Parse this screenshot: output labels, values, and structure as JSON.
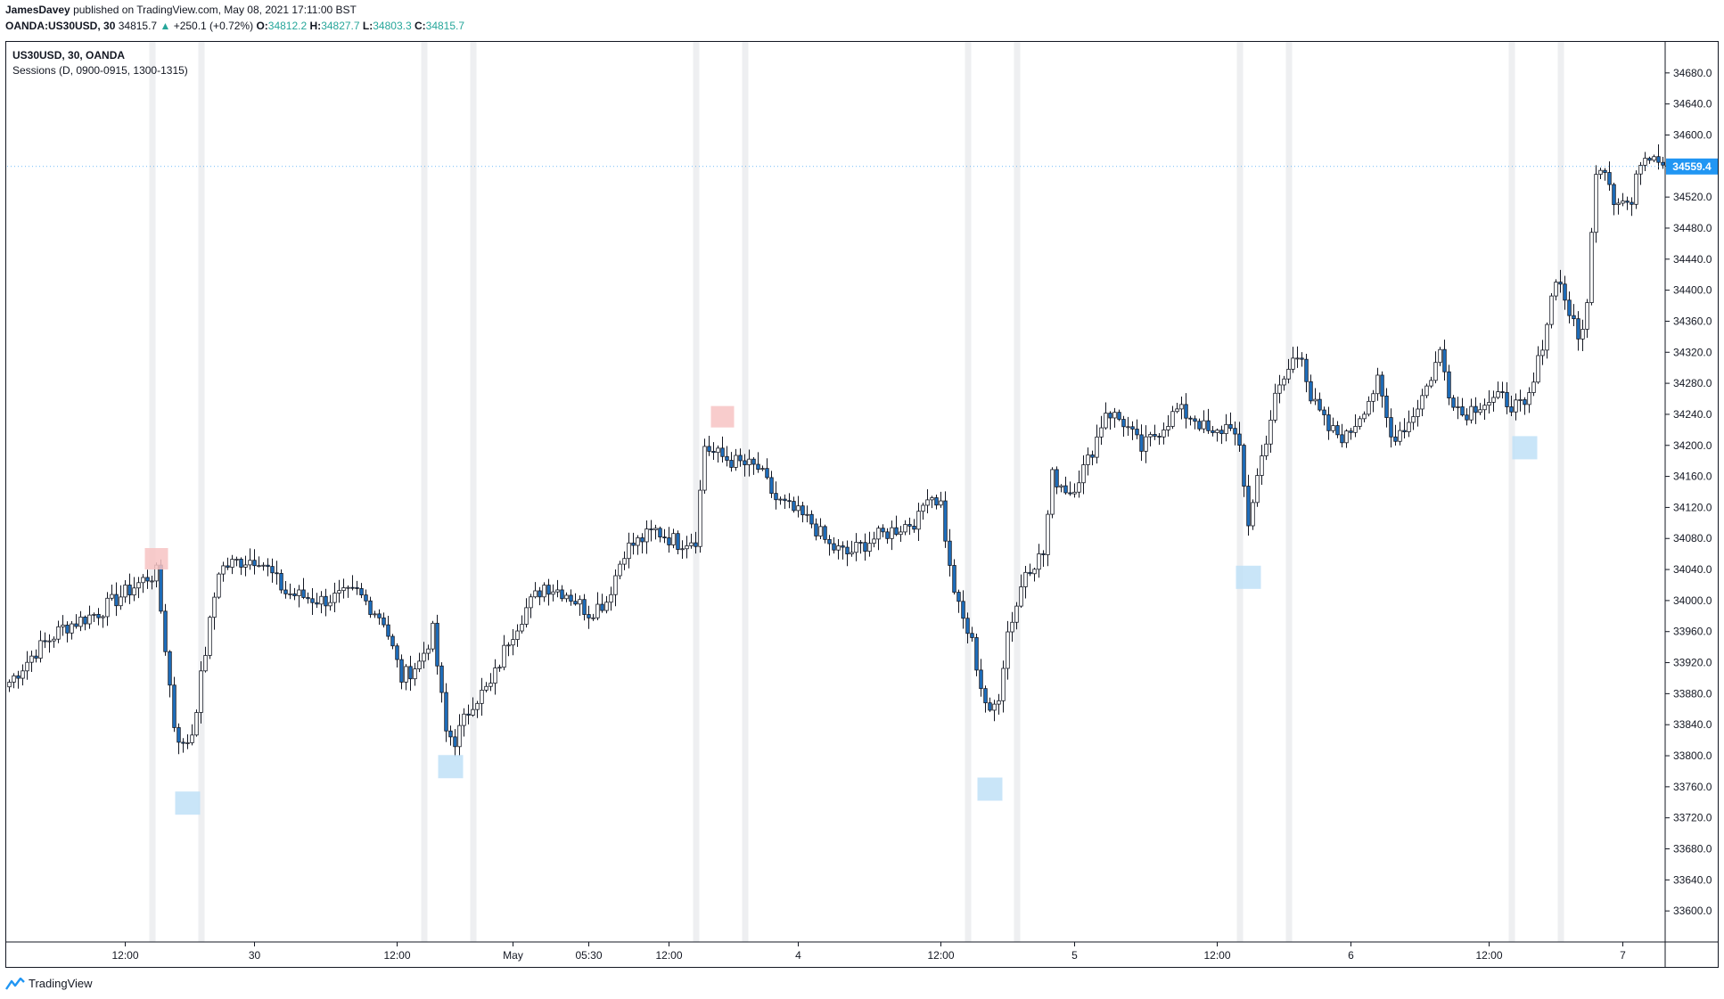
{
  "publish_line": {
    "author": "JamesDavey",
    "text": "published on TradingView.com, May 08, 2021 17:11:00 BST"
  },
  "quote": {
    "symbol": "OANDA:US30USD, 30",
    "last": "34815.7",
    "arrow": "▲",
    "change": "+250.1 (+0.72%)",
    "o_label": "O:",
    "o": "34812.2",
    "h_label": "H:",
    "h": "34827.7",
    "l_label": "L:",
    "l": "34803.3",
    "c_label": "C:",
    "c": "34815.7"
  },
  "legend": {
    "title": "US30USD, 30, OANDA",
    "indicator": "Sessions (D, 0900-0915, 1300-1315)"
  },
  "price_tag": "34559.4",
  "footer": {
    "brand": "TradingView"
  },
  "colors": {
    "up_body": "#ffffff",
    "down_body": "#1e6fbf",
    "wick": "#131722",
    "session_band": "#eeeff1",
    "high_marker": "#f7c3c3",
    "low_marker": "#bfe0f7",
    "tag": "#2196f3"
  },
  "chart_data": {
    "type": "candlestick",
    "title": "US30USD, 30, OANDA",
    "ylim": [
      33560,
      34720
    ],
    "y_ticks": [
      33600,
      33640,
      33680,
      33720,
      33760,
      33800,
      33840,
      33880,
      33920,
      33960,
      34000,
      34040,
      34080,
      34120,
      34160,
      34200,
      34240,
      34280,
      34320,
      34360,
      34400,
      34440,
      34480,
      34520,
      34560,
      34600,
      34640,
      34680
    ],
    "y_tick_labels": [
      "33600.0",
      "33640.0",
      "33680.0",
      "33720.0",
      "33760.0",
      "33800.0",
      "33840.0",
      "33880.0",
      "33920.0",
      "33960.0",
      "34000.0",
      "34040.0",
      "34080.0",
      "34120.0",
      "34160.0",
      "34200.0",
      "34240.0",
      "34280.0",
      "34320.0",
      "34360.0",
      "34400.0",
      "34440.0",
      "34480.0",
      "34520.0",
      "34560.0",
      "34600.0",
      "34640.0",
      "34680.0"
    ],
    "x_ticks": [
      {
        "bar": 26,
        "label": "12:00"
      },
      {
        "bar": 55,
        "label": "30"
      },
      {
        "bar": 87,
        "label": "12:00"
      },
      {
        "bar": 113,
        "label": "May"
      },
      {
        "bar": 130,
        "label": "05:30"
      },
      {
        "bar": 148,
        "label": "12:00"
      },
      {
        "bar": 177,
        "label": "4"
      },
      {
        "bar": 209,
        "label": "12:00"
      },
      {
        "bar": 239,
        "label": "5"
      },
      {
        "bar": 271,
        "label": "12:00"
      },
      {
        "bar": 301,
        "label": "6"
      },
      {
        "bar": 332,
        "label": "12:00"
      },
      {
        "bar": 362,
        "label": "7"
      }
    ],
    "session_bands": [
      32,
      43,
      93,
      104,
      154,
      165,
      215,
      226,
      276,
      287,
      337,
      348
    ],
    "daily_high_markers": [
      {
        "bar": 33,
        "price": 34047
      },
      {
        "bar": 160,
        "price": 34230
      }
    ],
    "daily_low_markers": [
      {
        "bar": 40,
        "price": 33747
      },
      {
        "bar": 99,
        "price": 33794
      },
      {
        "bar": 220,
        "price": 33765
      },
      {
        "bar": 278,
        "price": 34038
      },
      {
        "bar": 340,
        "price": 34205
      }
    ],
    "last_price": 34559.4,
    "anchors": [
      [
        0,
        33895
      ],
      [
        6,
        33935
      ],
      [
        12,
        33965
      ],
      [
        20,
        33985
      ],
      [
        26,
        34010
      ],
      [
        31,
        34030
      ],
      [
        33,
        34035
      ],
      [
        35,
        33940
      ],
      [
        37,
        33840
      ],
      [
        39,
        33810
      ],
      [
        41,
        33830
      ],
      [
        44,
        33935
      ],
      [
        47,
        34040
      ],
      [
        51,
        34050
      ],
      [
        56,
        34055
      ],
      [
        62,
        34010
      ],
      [
        70,
        34000
      ],
      [
        78,
        34010
      ],
      [
        84,
        33975
      ],
      [
        88,
        33900
      ],
      [
        92,
        33920
      ],
      [
        95,
        33960
      ],
      [
        98,
        33830
      ],
      [
        100,
        33820
      ],
      [
        104,
        33870
      ],
      [
        108,
        33890
      ],
      [
        112,
        33950
      ],
      [
        116,
        33990
      ],
      [
        120,
        34020
      ],
      [
        125,
        34010
      ],
      [
        130,
        33985
      ],
      [
        134,
        34000
      ],
      [
        138,
        34065
      ],
      [
        145,
        34090
      ],
      [
        150,
        34075
      ],
      [
        154,
        34080
      ],
      [
        156,
        34200
      ],
      [
        158,
        34190
      ],
      [
        162,
        34180
      ],
      [
        168,
        34170
      ],
      [
        172,
        34130
      ],
      [
        176,
        34115
      ],
      [
        180,
        34100
      ],
      [
        184,
        34070
      ],
      [
        188,
        34060
      ],
      [
        194,
        34080
      ],
      [
        200,
        34095
      ],
      [
        204,
        34105
      ],
      [
        206,
        34140
      ],
      [
        209,
        34125
      ],
      [
        211,
        34040
      ],
      [
        213,
        33990
      ],
      [
        216,
        33945
      ],
      [
        218,
        33890
      ],
      [
        220,
        33850
      ],
      [
        222,
        33880
      ],
      [
        224,
        33960
      ],
      [
        226,
        33995
      ],
      [
        228,
        34040
      ],
      [
        232,
        34060
      ],
      [
        234,
        34160
      ],
      [
        238,
        34140
      ],
      [
        242,
        34180
      ],
      [
        244,
        34210
      ],
      [
        246,
        34245
      ],
      [
        250,
        34230
      ],
      [
        254,
        34195
      ],
      [
        258,
        34220
      ],
      [
        262,
        34245
      ],
      [
        266,
        34235
      ],
      [
        270,
        34210
      ],
      [
        274,
        34230
      ],
      [
        276,
        34190
      ],
      [
        278,
        34100
      ],
      [
        280,
        34160
      ],
      [
        284,
        34260
      ],
      [
        288,
        34310
      ],
      [
        290,
        34320
      ],
      [
        292,
        34260
      ],
      [
        296,
        34220
      ],
      [
        300,
        34210
      ],
      [
        304,
        34250
      ],
      [
        307,
        34280
      ],
      [
        310,
        34210
      ],
      [
        314,
        34230
      ],
      [
        318,
        34275
      ],
      [
        321,
        34320
      ],
      [
        323,
        34270
      ],
      [
        326,
        34240
      ],
      [
        330,
        34255
      ],
      [
        335,
        34260
      ],
      [
        340,
        34245
      ],
      [
        342,
        34280
      ],
      [
        345,
        34360
      ],
      [
        347,
        34420
      ],
      [
        349,
        34390
      ],
      [
        352,
        34335
      ],
      [
        354,
        34380
      ],
      [
        356,
        34560
      ],
      [
        358,
        34560
      ],
      [
        360,
        34520
      ],
      [
        364,
        34510
      ],
      [
        366,
        34570
      ],
      [
        369,
        34580
      ],
      [
        371,
        34565
      ]
    ],
    "n_bars": 372
  }
}
